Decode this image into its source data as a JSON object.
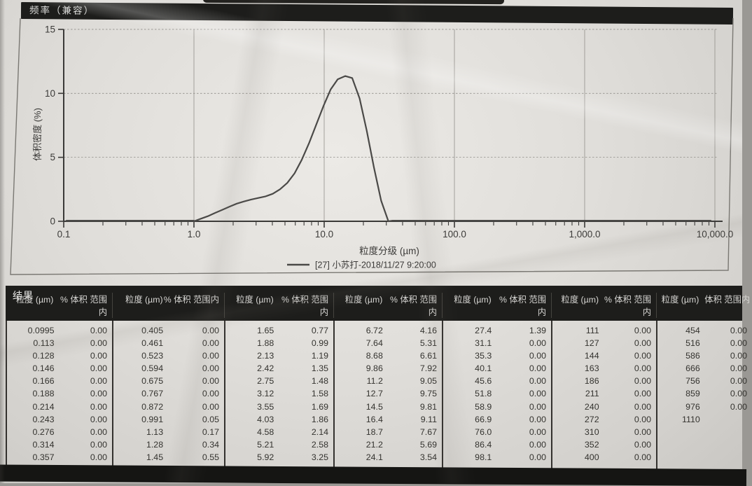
{
  "chart": {
    "title": "频率（兼容）"
  },
  "chart_data": {
    "type": "line",
    "title": "频率（兼容）",
    "xlabel": "粒度分级 (µm)",
    "ylabel": "体积密度 (%)",
    "xscale": "log",
    "xlim": [
      0.1,
      10000
    ],
    "ylim": [
      0,
      15
    ],
    "grid": true,
    "legend_position": "bottom",
    "legend": "[27] 小苏打-2018/11/27 9:20:00",
    "xtick_vals": [
      0.1,
      1,
      10,
      100,
      1000,
      10000
    ],
    "xtick_labels": [
      "0.1",
      "1.0",
      "10.0",
      "100.0",
      "1,000.0",
      "10,000.0"
    ],
    "ytick_vals": [
      0,
      5,
      10,
      15
    ],
    "ytick_labels": [
      "0",
      "5",
      "10",
      "15"
    ],
    "x": [
      1.0,
      1.13,
      1.28,
      1.45,
      1.65,
      1.88,
      2.13,
      2.42,
      2.75,
      3.12,
      3.55,
      4.03,
      4.58,
      5.21,
      5.92,
      6.72,
      7.64,
      8.68,
      9.86,
      11.2,
      12.7,
      14.5,
      16.4,
      18.7,
      21.2,
      24.1,
      27.4,
      31.1
    ],
    "y": [
      0,
      0.2,
      0.4,
      0.65,
      0.9,
      1.15,
      1.38,
      1.55,
      1.7,
      1.82,
      1.95,
      2.15,
      2.5,
      3.0,
      3.75,
      4.8,
      6.1,
      7.55,
      9.0,
      10.3,
      11.1,
      11.35,
      11.2,
      9.6,
      7.1,
      4.2,
      1.6,
      0
    ]
  },
  "table": {
    "title": "结果",
    "size_header": "粒度 (µm)",
    "pct_header": "% 体积 范围内",
    "pct_header_last": "体积 范围内",
    "groups": [
      [
        [
          "0.0995",
          "0.00"
        ],
        [
          "0.113",
          "0.00"
        ],
        [
          "0.128",
          "0.00"
        ],
        [
          "0.146",
          "0.00"
        ],
        [
          "0.166",
          "0.00"
        ],
        [
          "0.188",
          "0.00"
        ],
        [
          "0.214",
          "0.00"
        ],
        [
          "0.243",
          "0.00"
        ],
        [
          "0.276",
          "0.00"
        ],
        [
          "0.314",
          "0.00"
        ],
        [
          "0.357",
          "0.00"
        ]
      ],
      [
        [
          "0.405",
          "0.00"
        ],
        [
          "0.461",
          "0.00"
        ],
        [
          "0.523",
          "0.00"
        ],
        [
          "0.594",
          "0.00"
        ],
        [
          "0.675",
          "0.00"
        ],
        [
          "0.767",
          "0.00"
        ],
        [
          "0.872",
          "0.00"
        ],
        [
          "0.991",
          "0.05"
        ],
        [
          "1.13",
          "0.17"
        ],
        [
          "1.28",
          "0.34"
        ],
        [
          "1.45",
          "0.55"
        ]
      ],
      [
        [
          "1.65",
          "0.77"
        ],
        [
          "1.88",
          "0.99"
        ],
        [
          "2.13",
          "1.19"
        ],
        [
          "2.42",
          "1.35"
        ],
        [
          "2.75",
          "1.48"
        ],
        [
          "3.12",
          "1.58"
        ],
        [
          "3.55",
          "1.69"
        ],
        [
          "4.03",
          "1.86"
        ],
        [
          "4.58",
          "2.14"
        ],
        [
          "5.21",
          "2.58"
        ],
        [
          "5.92",
          "3.25"
        ]
      ],
      [
        [
          "6.72",
          "4.16"
        ],
        [
          "7.64",
          "5.31"
        ],
        [
          "8.68",
          "6.61"
        ],
        [
          "9.86",
          "7.92"
        ],
        [
          "11.2",
          "9.05"
        ],
        [
          "12.7",
          "9.75"
        ],
        [
          "14.5",
          "9.81"
        ],
        [
          "16.4",
          "9.11"
        ],
        [
          "18.7",
          "7.67"
        ],
        [
          "21.2",
          "5.69"
        ],
        [
          "24.1",
          "3.54"
        ]
      ],
      [
        [
          "27.4",
          "1.39"
        ],
        [
          "31.1",
          "0.00"
        ],
        [
          "35.3",
          "0.00"
        ],
        [
          "40.1",
          "0.00"
        ],
        [
          "45.6",
          "0.00"
        ],
        [
          "51.8",
          "0.00"
        ],
        [
          "58.9",
          "0.00"
        ],
        [
          "66.9",
          "0.00"
        ],
        [
          "76.0",
          "0.00"
        ],
        [
          "86.4",
          "0.00"
        ],
        [
          "98.1",
          "0.00"
        ]
      ],
      [
        [
          "111",
          "0.00"
        ],
        [
          "127",
          "0.00"
        ],
        [
          "144",
          "0.00"
        ],
        [
          "163",
          "0.00"
        ],
        [
          "186",
          "0.00"
        ],
        [
          "211",
          "0.00"
        ],
        [
          "240",
          "0.00"
        ],
        [
          "272",
          "0.00"
        ],
        [
          "310",
          "0.00"
        ],
        [
          "352",
          "0.00"
        ],
        [
          "400",
          "0.00"
        ]
      ],
      [
        [
          "454",
          "0.00"
        ],
        [
          "516",
          "0.00"
        ],
        [
          "586",
          "0.00"
        ],
        [
          "666",
          "0.00"
        ],
        [
          "756",
          "0.00"
        ],
        [
          "859",
          "0.00"
        ],
        [
          "976",
          "0.00"
        ],
        [
          "1110",
          ""
        ]
      ]
    ]
  }
}
